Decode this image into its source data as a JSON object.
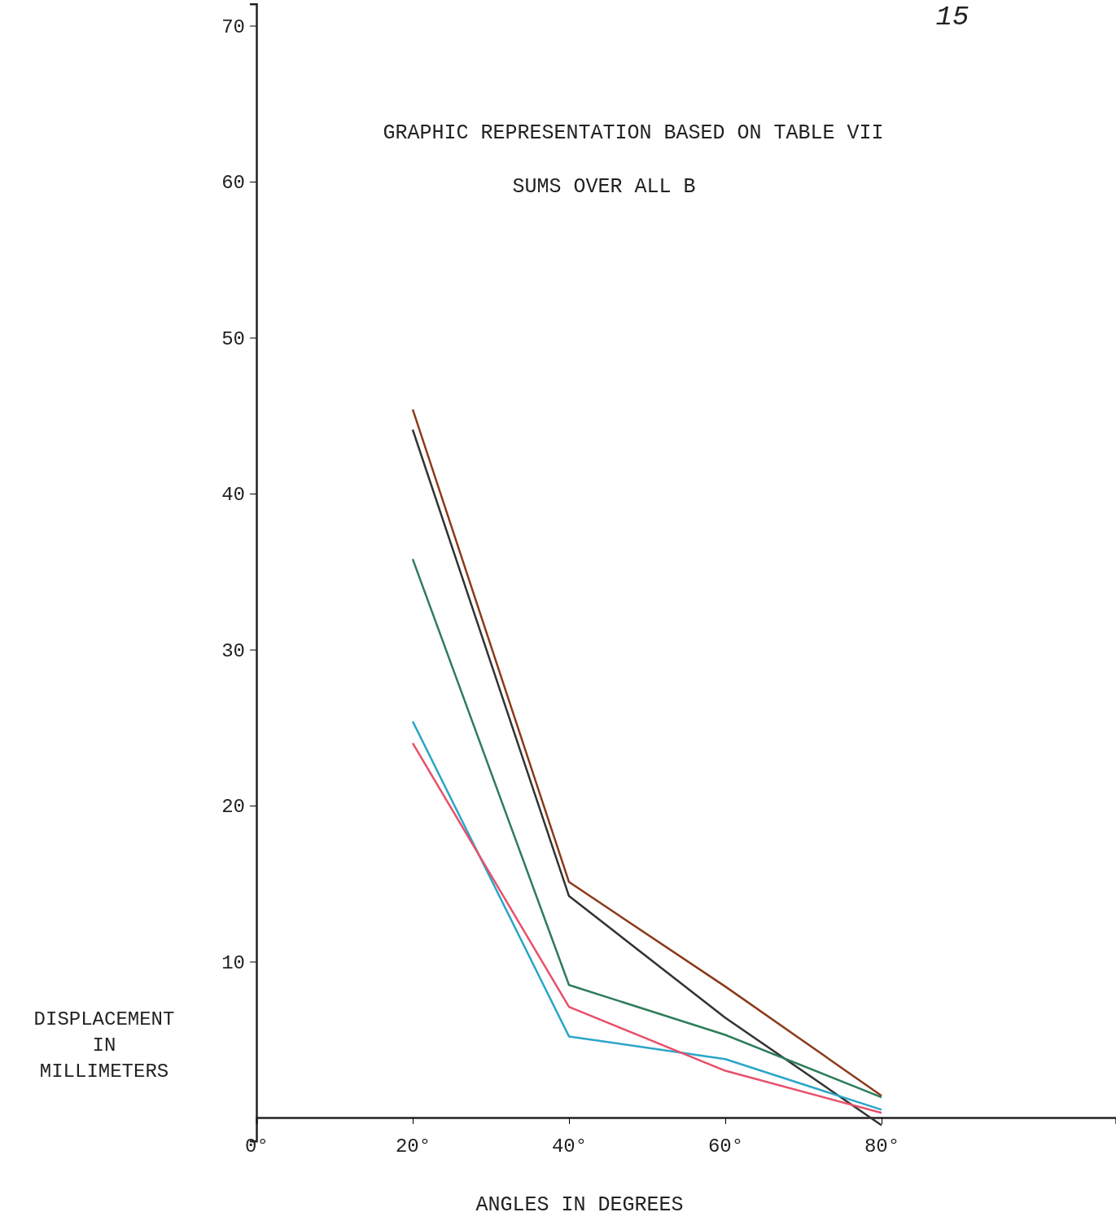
{
  "chart_data": {
    "type": "line",
    "title": "GRAPHIC REPRESENTATION BASED ON TABLE VII",
    "subtitle": "SUMS OVER ALL B",
    "xlabel": "ANGLES IN DEGREES",
    "ylabel": "DISPLACEMENT IN MILLIMETERS",
    "annotations": [
      "15"
    ],
    "x": [
      20,
      40,
      60,
      80
    ],
    "series": [
      {
        "color": "#8b3a1a",
        "values": [
          45.4,
          15.1,
          8.4,
          1.4
        ]
      },
      {
        "color": "#333333",
        "values": [
          44.1,
          14.2,
          6.4,
          -0.5
        ]
      },
      {
        "color": "#2e7d5a",
        "values": [
          35.8,
          8.5,
          5.3,
          1.3
        ]
      },
      {
        "color": "#2aa6c8",
        "values": [
          25.4,
          5.2,
          3.75,
          0.5
        ]
      },
      {
        "color": "#e8506a",
        "values": [
          24.0,
          7.1,
          3.0,
          0.3
        ]
      }
    ],
    "xlim": [
      0,
      110
    ],
    "ylim": [
      -1.5,
      71.4
    ],
    "xticks": [
      {
        "value": 0,
        "label": "0°"
      },
      {
        "value": 20,
        "label": "20°"
      },
      {
        "value": 40,
        "label": "40°"
      },
      {
        "value": 60,
        "label": "60°"
      },
      {
        "value": 80,
        "label": "80°"
      }
    ],
    "yticks": [
      10,
      20,
      30,
      40,
      50,
      60,
      70
    ],
    "grid": false,
    "marker": "none",
    "line_style": "solid"
  }
}
